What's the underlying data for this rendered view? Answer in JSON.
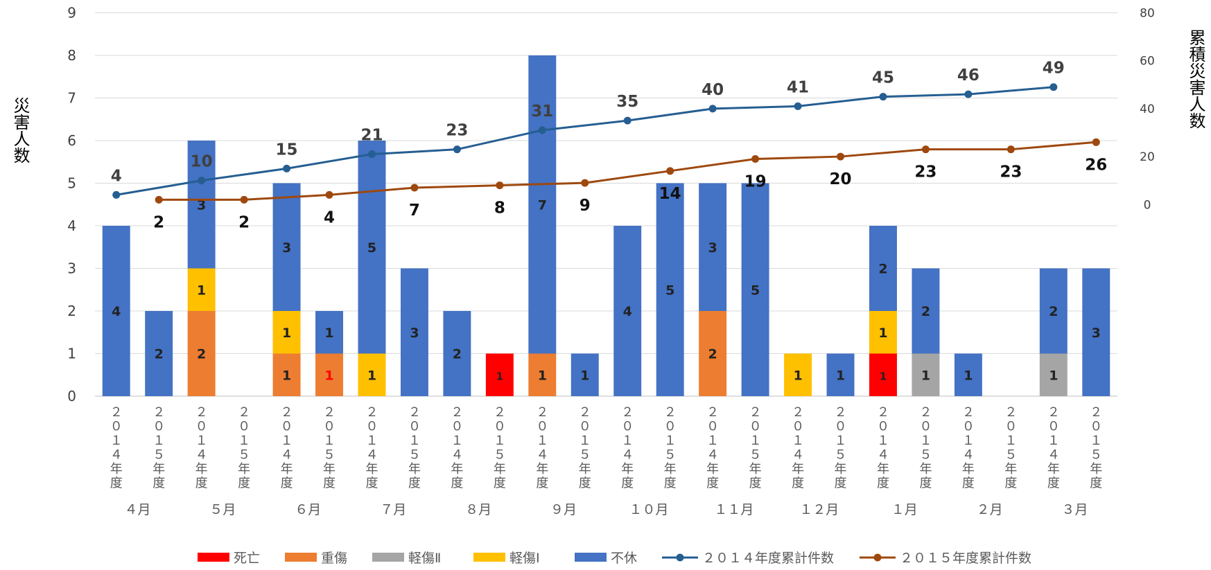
{
  "chart_data": {
    "type": "bar",
    "subtype": "stacked bar with cumulative line overlay (secondary axis)",
    "ylabel_left": "災害人数",
    "ylabel_right": "累積災害人数",
    "ylim_left": [
      0,
      9
    ],
    "yticks_left": [
      "0",
      "1",
      "2",
      "3",
      "4",
      "5",
      "6",
      "7",
      "8",
      "9"
    ],
    "ylim_right": [
      0,
      80
    ],
    "yticks_right": [
      "0",
      "20",
      "40",
      "60",
      "80"
    ],
    "right_axis_span_left_units": [
      4.5,
      9
    ],
    "grid": true,
    "legend_position": "bottom",
    "categories_sub": [
      "２０１４年度",
      "２０１５年度",
      "２０１４年度",
      "２０１５年度",
      "２０１４年度",
      "２０１５年度",
      "２０１４年度",
      "２０１５年度",
      "２０１４年度",
      "２０１５年度",
      "２０１４年度",
      "２０１５年度",
      "２０１４年度",
      "２０１５年度",
      "２０１４年度",
      "２０１５年度",
      "２０１４年度",
      "２０１５年度",
      "２０１４年度",
      "２０１５年度",
      "２０１４年度",
      "２０１５年度",
      "２０１４年度",
      "２０１５年度"
    ],
    "categories_group": [
      "４月",
      "５月",
      "６月",
      "７月",
      "８月",
      "９月",
      "１０月",
      "１１月",
      "１２月",
      "１月",
      "２月",
      "３月"
    ],
    "series": [
      {
        "name": "死亡",
        "color": "#ff0000",
        "values": [
          0,
          0,
          0,
          0,
          0,
          0,
          0,
          0,
          0,
          1,
          0,
          0,
          0,
          0,
          0,
          0,
          0,
          0,
          1,
          0,
          0,
          0,
          0,
          0
        ]
      },
      {
        "name": "重傷",
        "color": "#ed7d31",
        "values": [
          0,
          0,
          2,
          0,
          1,
          1,
          0,
          0,
          0,
          0,
          1,
          0,
          0,
          0,
          2,
          0,
          0,
          0,
          0,
          0,
          0,
          0,
          0,
          0
        ]
      },
      {
        "name": "軽傷Ⅱ",
        "color": "#a5a5a5",
        "values": [
          0,
          0,
          0,
          0,
          0,
          0,
          0,
          0,
          0,
          0,
          0,
          0,
          0,
          0,
          0,
          0,
          0,
          0,
          0,
          1,
          0,
          0,
          1,
          0
        ]
      },
      {
        "name": "軽傷Ⅰ",
        "color": "#ffc000",
        "values": [
          0,
          0,
          1,
          0,
          1,
          0,
          1,
          0,
          0,
          0,
          0,
          0,
          0,
          0,
          0,
          0,
          1,
          0,
          1,
          0,
          0,
          0,
          0,
          0
        ]
      },
      {
        "name": "不休",
        "color": "#4472c4",
        "values": [
          4,
          2,
          3,
          0,
          3,
          1,
          5,
          3,
          2,
          0,
          7,
          1,
          4,
          5,
          3,
          5,
          0,
          1,
          2,
          2,
          1,
          0,
          2,
          3
        ]
      }
    ],
    "lines": [
      {
        "name": "２０１４年度累計件数",
        "color": "#255e91",
        "axis": "right",
        "x_index": [
          0,
          2,
          4,
          6,
          8,
          10,
          12,
          14,
          16,
          18,
          20,
          22
        ],
        "values": [
          4,
          10,
          15,
          21,
          23,
          31,
          35,
          40,
          41,
          45,
          46,
          49
        ]
      },
      {
        "name": "２０１５年度累計件数",
        "color": "#9e480e",
        "axis": "right",
        "x_index": [
          1,
          3,
          5,
          7,
          9,
          11,
          13,
          15,
          17,
          19,
          21,
          23
        ],
        "values": [
          2,
          2,
          4,
          7,
          8,
          9,
          14,
          19,
          20,
          23,
          23,
          26
        ]
      }
    ],
    "legend": [
      "死亡",
      "重傷",
      "軽傷Ⅱ",
      "軽傷Ⅰ",
      "不休",
      "２０１４年度累計件数",
      "２０１５年度累計件数"
    ]
  }
}
